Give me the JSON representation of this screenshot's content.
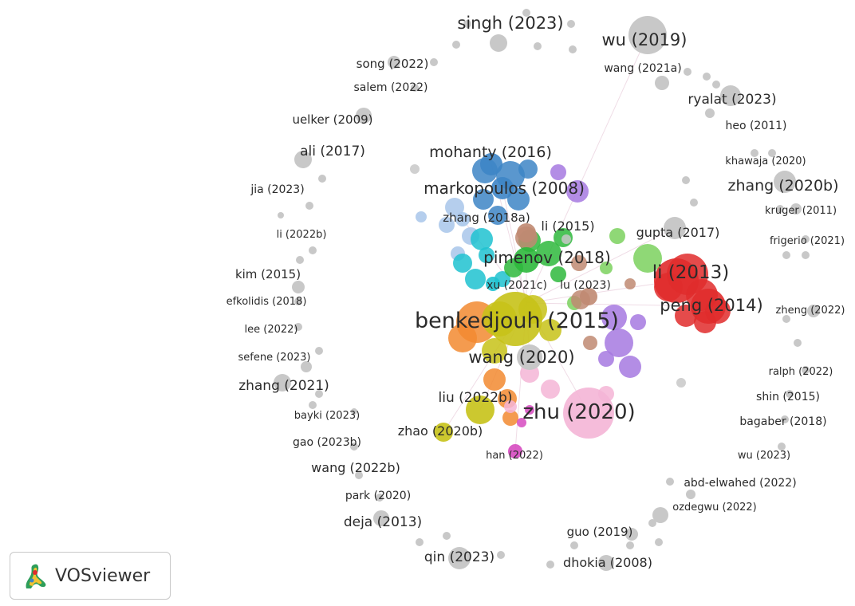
{
  "app_name": "VOSviewer",
  "colors": {
    "peripheral": "#c8c8c8",
    "blue": "#3d85c6",
    "lightblue": "#a8c6ea",
    "cyan": "#1fc2d0",
    "green": "#2eb83c",
    "lightgreen": "#7bd15e",
    "brown": "#c08a72",
    "yellow": "#c7c218",
    "orange": "#f28a30",
    "purple": "#a679e0",
    "red": "#e02c2c",
    "pink": "#f4b5d6",
    "magenta": "#d64ac0"
  },
  "nodes": [
    {
      "label": "singh (2023)",
      "size": "large",
      "color": "peripheral"
    },
    {
      "label": "wu (2019)",
      "size": "large",
      "color": "peripheral"
    },
    {
      "label": "song (2022)",
      "size": "small",
      "color": "peripheral"
    },
    {
      "label": "wang (2021a)",
      "size": "small",
      "color": "peripheral"
    },
    {
      "label": "salem (2022)",
      "size": "small",
      "color": "peripheral"
    },
    {
      "label": "ryalat (2023)",
      "size": "medium",
      "color": "peripheral"
    },
    {
      "label": "uelker (2009)",
      "size": "small",
      "color": "peripheral"
    },
    {
      "label": "heo (2011)",
      "size": "small",
      "color": "peripheral"
    },
    {
      "label": "mohanty (2016)",
      "size": "medium",
      "color": "blue"
    },
    {
      "label": "ali (2017)",
      "size": "small",
      "color": "peripheral"
    },
    {
      "label": "khawaja (2020)",
      "size": "small",
      "color": "peripheral"
    },
    {
      "label": "markopoulos (2008)",
      "size": "large",
      "color": "blue"
    },
    {
      "label": "zhang (2020b)",
      "size": "medium",
      "color": "peripheral"
    },
    {
      "label": "jia (2023)",
      "size": "small",
      "color": "peripheral"
    },
    {
      "label": "zhang (2018a)",
      "size": "small",
      "color": "lightblue"
    },
    {
      "label": "li (2015)",
      "size": "medium",
      "color": "brown"
    },
    {
      "label": "kruger (2011)",
      "size": "small",
      "color": "peripheral"
    },
    {
      "label": "gupta (2017)",
      "size": "medium",
      "color": "peripheral"
    },
    {
      "label": "li (2022b)",
      "size": "small",
      "color": "peripheral"
    },
    {
      "label": "frigerio (2021)",
      "size": "small",
      "color": "peripheral"
    },
    {
      "label": "pimenov (2018)",
      "size": "large",
      "color": "green"
    },
    {
      "label": "li (2013)",
      "size": "large",
      "color": "red"
    },
    {
      "label": "kim (2015)",
      "size": "small",
      "color": "peripheral"
    },
    {
      "label": "xu (2021c)",
      "size": "small",
      "color": "cyan"
    },
    {
      "label": "lu (2023)",
      "size": "small",
      "color": "brown"
    },
    {
      "label": "efkolidis (2018)",
      "size": "small",
      "color": "peripheral"
    },
    {
      "label": "peng (2014)",
      "size": "large",
      "color": "red"
    },
    {
      "label": "zheng (2022)",
      "size": "small",
      "color": "peripheral"
    },
    {
      "label": "benkedjouh (2015)",
      "size": "xlarge",
      "color": "yellow"
    },
    {
      "label": "lee (2022)",
      "size": "small",
      "color": "peripheral"
    },
    {
      "label": "sefene (2023)",
      "size": "small",
      "color": "peripheral"
    },
    {
      "label": "wang (2020)",
      "size": "large",
      "color": "peripheral"
    },
    {
      "label": "ralph (2022)",
      "size": "small",
      "color": "peripheral"
    },
    {
      "label": "zhang (2021)",
      "size": "medium",
      "color": "peripheral"
    },
    {
      "label": "shin (2015)",
      "size": "small",
      "color": "peripheral"
    },
    {
      "label": "liu (2022b)",
      "size": "medium",
      "color": "yellow"
    },
    {
      "label": "bayki (2023)",
      "size": "small",
      "color": "peripheral"
    },
    {
      "label": "bagaber (2018)",
      "size": "small",
      "color": "peripheral"
    },
    {
      "label": "zhu (2020)",
      "size": "xlarge",
      "color": "pink"
    },
    {
      "label": "zhao (2020b)",
      "size": "medium",
      "color": "yellow"
    },
    {
      "label": "gao (2023b)",
      "size": "small",
      "color": "peripheral"
    },
    {
      "label": "han (2022)",
      "size": "small",
      "color": "magenta"
    },
    {
      "label": "wu (2023)",
      "size": "small",
      "color": "peripheral"
    },
    {
      "label": "wang (2022b)",
      "size": "medium",
      "color": "peripheral"
    },
    {
      "label": "abd-elwahed (2022)",
      "size": "small",
      "color": "peripheral"
    },
    {
      "label": "park (2020)",
      "size": "small",
      "color": "peripheral"
    },
    {
      "label": "ozdegwu (2022)",
      "size": "small",
      "color": "peripheral"
    },
    {
      "label": "deja (2013)",
      "size": "medium",
      "color": "peripheral"
    },
    {
      "label": "guo (2019)",
      "size": "medium",
      "color": "peripheral"
    },
    {
      "label": "qin (2023)",
      "size": "medium",
      "color": "peripheral"
    },
    {
      "label": "dhokia (2008)",
      "size": "medium",
      "color": "peripheral"
    }
  ]
}
